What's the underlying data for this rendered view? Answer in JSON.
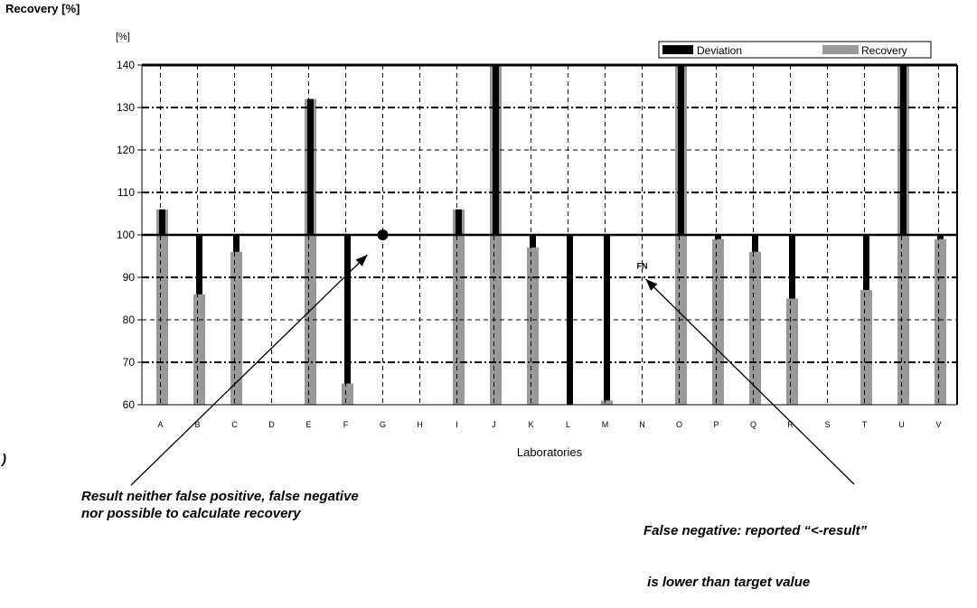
{
  "page_title": "Recovery [%]",
  "stray_mark": ")",
  "chart_data": {
    "type": "bar",
    "y_unit_label": "[%]",
    "xlabel": "Laboratories",
    "ylim": [
      60,
      140
    ],
    "yticks": [
      60,
      70,
      80,
      90,
      100,
      110,
      120,
      130,
      140
    ],
    "baseline": 100,
    "grid": true,
    "legend_position": "top-right",
    "categories": [
      "A",
      "B",
      "C",
      "D",
      "E",
      "F",
      "G",
      "H",
      "I",
      "J",
      "K",
      "L",
      "M",
      "N",
      "O",
      "P",
      "Q",
      "R",
      "S",
      "T",
      "U",
      "V"
    ],
    "series": [
      {
        "name": "Deviation",
        "color": "#000000",
        "values": [
          106,
          86,
          96,
          null,
          132,
          65,
          null,
          null,
          106,
          140,
          97,
          60,
          61,
          null,
          140,
          99,
          96,
          85,
          null,
          87,
          140,
          99
        ]
      },
      {
        "name": "Recovery",
        "color": "#999999",
        "values": [
          106,
          86,
          96,
          null,
          132,
          65,
          null,
          null,
          106,
          140,
          97,
          null,
          61,
          null,
          140,
          99,
          96,
          85,
          null,
          87,
          140,
          99
        ]
      }
    ],
    "markers": [
      {
        "category": "G",
        "value": 100,
        "kind": "dot"
      },
      {
        "category": "N",
        "value": 92,
        "kind": "text",
        "text": "FN"
      }
    ],
    "annotations": [
      {
        "line1": "Result neither false positive, false negative",
        "line2": "nor possible to calculate recovery",
        "category": "G",
        "value": 100
      },
      {
        "line1": "False negative: reported “<-result”",
        "line2": " is lower than target value",
        "category": "N",
        "value": 90
      }
    ]
  }
}
